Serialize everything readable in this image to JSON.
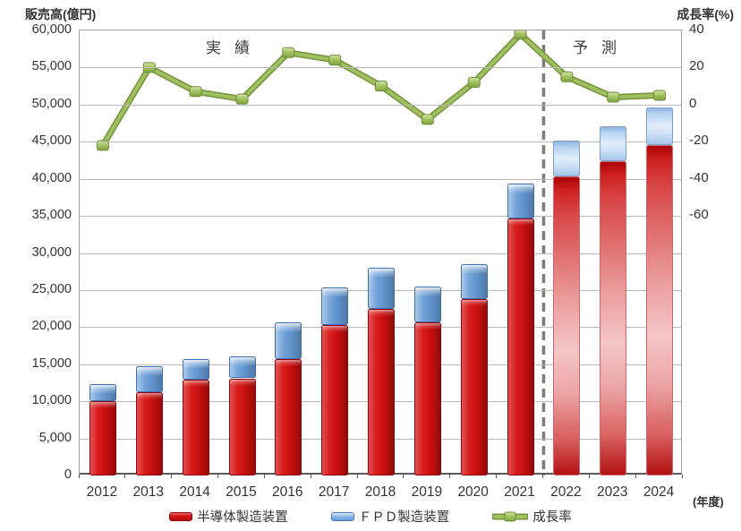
{
  "titles": {
    "left": "販売高(億円)",
    "right": "成長率(%)"
  },
  "annotations": {
    "actual": "実績",
    "forecast": "予測"
  },
  "x_axis": {
    "unit": "(年度)"
  },
  "colors": {
    "semiconductor_bar": "#cc0000",
    "fpd_bar": "#659bd6",
    "growth_line": "#9bbb59",
    "gridline": "#b9b9b9",
    "forecast_separator": "#7c7c7c"
  },
  "legend": [
    {
      "id": "semi",
      "label": "半導体製造装置"
    },
    {
      "id": "fpd",
      "label": "ＦＰＤ製造装置"
    },
    {
      "id": "growth",
      "label": "成長率"
    }
  ],
  "chart_data": {
    "type": "bar",
    "subtype": "stacked-columns-with-growth-line",
    "title": "",
    "categories": [
      2012,
      2013,
      2014,
      2015,
      2016,
      2017,
      2018,
      2019,
      2020,
      2021,
      2022,
      2023,
      2024
    ],
    "series": [
      {
        "name": "半導体製造装置",
        "type": "bar",
        "stack": "sales",
        "axis": "left",
        "color": "#cc0000",
        "values": [
          10000,
          11200,
          12900,
          13100,
          15700,
          20300,
          22500,
          20700,
          23800,
          34600,
          40300,
          42400,
          44500
        ]
      },
      {
        "name": "ＦＰＤ製造装置",
        "type": "bar",
        "stack": "sales",
        "axis": "left",
        "color": "#659bd6",
        "values": [
          2300,
          3500,
          2800,
          3000,
          4900,
          5100,
          5500,
          4800,
          4700,
          4800,
          4900,
          4700,
          5100
        ]
      },
      {
        "name": "成長率",
        "type": "line",
        "axis": "right",
        "color": "#9bbb59",
        "values": [
          -22,
          20,
          7,
          3,
          28,
          24,
          10,
          -8,
          12,
          38,
          15,
          4,
          5
        ]
      }
    ],
    "stack_totals": [
      12300,
      14700,
      15700,
      16100,
      20600,
      25400,
      28000,
      25500,
      28500,
      39400,
      45200,
      47100,
      49600
    ],
    "left_axis": {
      "title": "販売高(億円)",
      "min": 0,
      "max": 60000,
      "step": 5000,
      "tick_labels": [
        "0",
        "5,000",
        "10,000",
        "15,000",
        "20,000",
        "25,000",
        "30,000",
        "35,000",
        "40,000",
        "45,000",
        "50,000",
        "55,000",
        "60,000"
      ]
    },
    "right_axis": {
      "title": "成長率(%)",
      "top_value": 40,
      "step": -20,
      "tick_labels": [
        "40",
        "20",
        "0",
        "-20",
        "-40",
        "-60"
      ]
    },
    "x_axis_unit": "(年度)",
    "forecast_start_category": 2022,
    "annotation_actual": "実績",
    "annotation_forecast": "予測",
    "legend_position": "bottom",
    "grid": "horizontal"
  }
}
